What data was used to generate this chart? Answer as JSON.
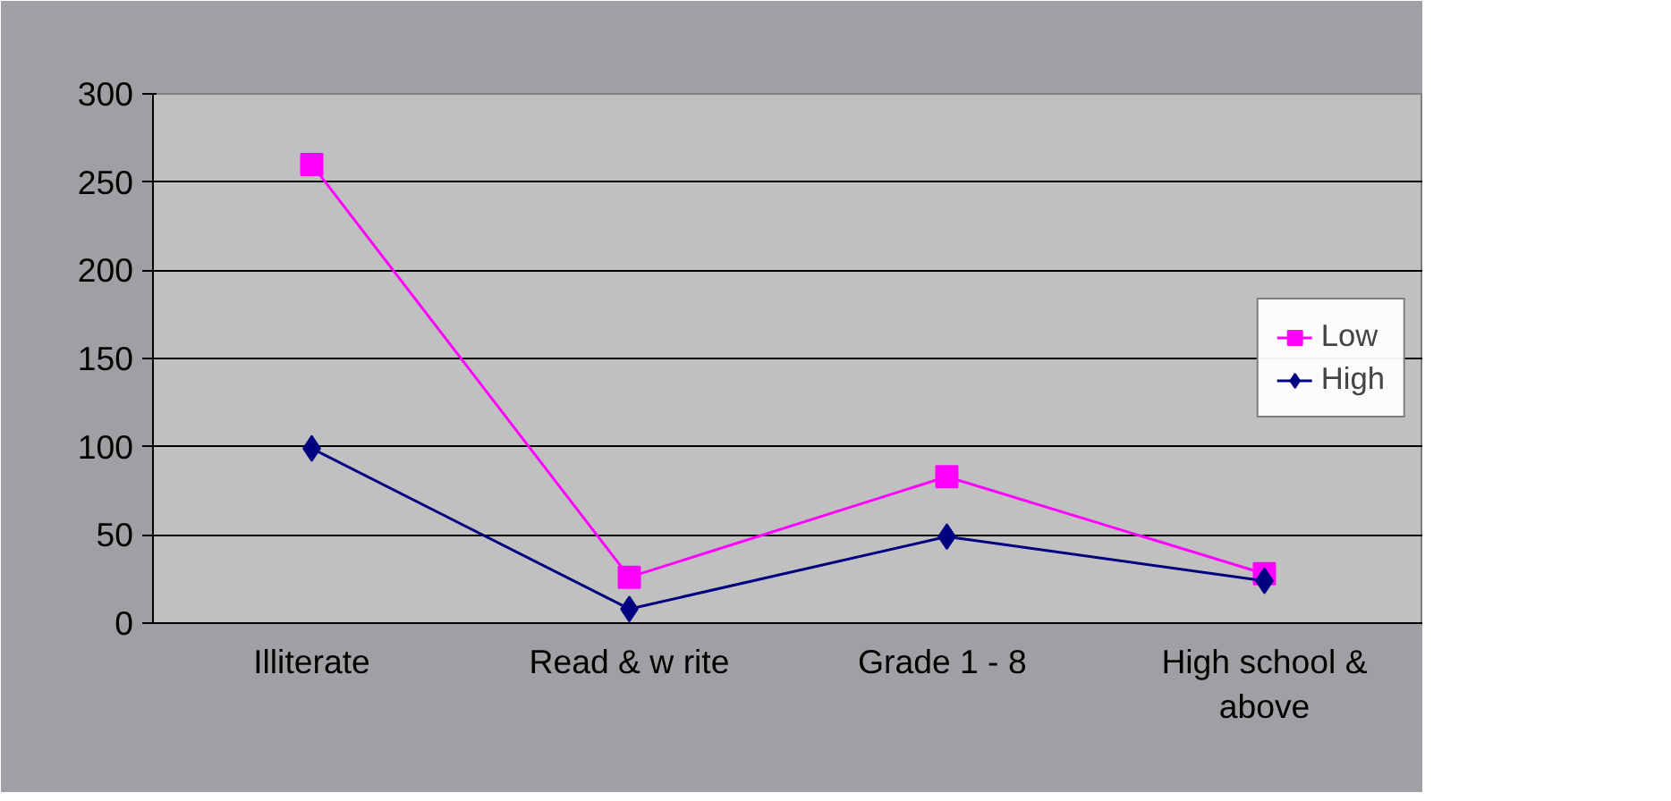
{
  "chart_data": {
    "type": "line",
    "categories": [
      "Illiterate",
      "Read & w rite",
      "Grade 1 -  8",
      "High school & above"
    ],
    "series": [
      {
        "name": "Low",
        "color": "#ff00ff",
        "marker": "square",
        "values": [
          260,
          26,
          83,
          28
        ]
      },
      {
        "name": "High",
        "color": "#000080",
        "marker": "diamond",
        "values": [
          99,
          8,
          49,
          24
        ]
      }
    ],
    "ylim": [
      0,
      300
    ],
    "yticks": [
      0,
      50,
      100,
      150,
      200,
      250,
      300
    ],
    "grid": "y",
    "legend": "right"
  }
}
